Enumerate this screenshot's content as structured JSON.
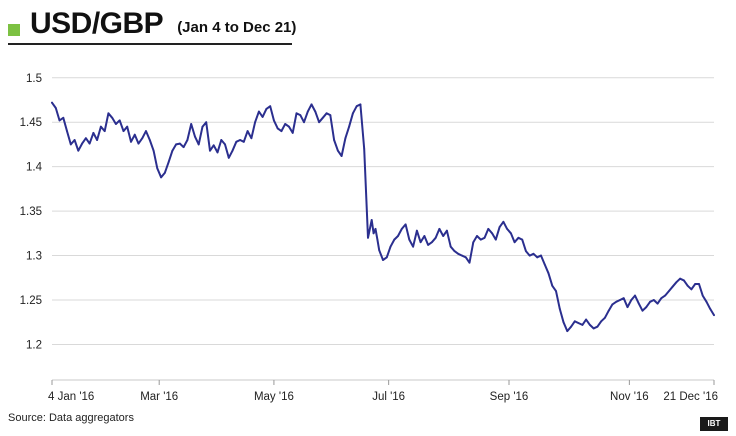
{
  "header": {
    "title": "USD/GBP",
    "subtitle": "(Jan 4 to Dec 21)",
    "accent_color": "#7cc142"
  },
  "footer": {
    "source": "Source: Data aggregators",
    "logo": "IBT"
  },
  "chart_data": {
    "type": "line",
    "title": "USD/GBP",
    "subtitle": "(Jan 4 to Dec 21)",
    "xlabel": "",
    "ylabel": "",
    "ylim": [
      1.16,
      1.52
    ],
    "yticks": [
      1.2,
      1.25,
      1.3,
      1.35,
      1.4,
      1.45,
      1.5
    ],
    "ytick_labels": [
      "1.2",
      "1.25",
      "1.3",
      "1.35",
      "1.4",
      "1.45",
      "1.5"
    ],
    "xlim": [
      0,
      352
    ],
    "xticks": [
      0,
      57,
      118,
      179,
      243,
      307,
      352
    ],
    "xtick_labels": [
      "4 Jan '16",
      "Mar '16",
      "May '16",
      "Jul '16",
      "Sep '16",
      "Nov '16",
      "21 Dec '16"
    ],
    "grid": {
      "horizontal": true,
      "vertical": false
    },
    "line_color": "#2b2f8f",
    "series": [
      {
        "x": [
          0,
          2,
          4,
          6,
          8,
          10,
          12,
          14,
          16,
          18,
          20,
          22,
          24,
          26,
          28,
          30,
          32,
          34,
          36,
          38,
          40,
          42,
          44,
          46,
          48,
          50,
          52,
          54,
          56,
          58,
          60,
          62,
          64,
          66,
          68,
          70,
          72,
          74,
          76,
          78,
          80,
          82,
          84,
          86,
          88,
          90,
          92,
          94,
          96,
          98,
          100,
          102,
          104,
          106,
          108,
          110,
          112,
          114,
          116,
          118,
          120,
          122,
          124,
          126,
          128,
          130,
          132,
          134,
          136,
          138,
          140,
          142,
          144,
          146,
          148,
          150,
          152,
          154,
          156,
          158,
          160,
          162,
          164,
          166,
          168,
          170,
          171,
          172,
          173,
          174,
          176,
          178,
          180,
          182,
          184,
          186,
          188,
          190,
          192,
          194,
          196,
          198,
          200,
          202,
          204,
          206,
          208,
          210,
          212,
          214,
          216,
          218,
          220,
          222,
          224,
          226,
          228,
          230,
          232,
          234,
          236,
          238,
          240,
          242,
          244,
          246,
          248,
          250,
          252,
          254,
          256,
          258,
          260,
          262,
          264,
          266,
          268,
          270,
          272,
          274,
          276,
          278,
          280,
          282,
          284,
          286,
          288,
          290,
          292,
          294,
          296,
          298,
          300,
          302,
          304,
          306,
          308,
          310,
          312,
          314,
          316,
          318,
          320,
          322,
          324,
          326,
          328,
          330,
          332,
          334,
          336,
          338,
          340,
          342,
          344,
          346,
          348,
          350,
          352
        ],
        "values": [
          1.472,
          1.466,
          1.452,
          1.455,
          1.44,
          1.425,
          1.43,
          1.418,
          1.426,
          1.432,
          1.426,
          1.438,
          1.43,
          1.445,
          1.44,
          1.46,
          1.455,
          1.448,
          1.452,
          1.44,
          1.445,
          1.428,
          1.436,
          1.426,
          1.432,
          1.44,
          1.43,
          1.418,
          1.398,
          1.388,
          1.393,
          1.405,
          1.418,
          1.425,
          1.426,
          1.422,
          1.43,
          1.448,
          1.434,
          1.425,
          1.445,
          1.45,
          1.418,
          1.424,
          1.416,
          1.43,
          1.425,
          1.41,
          1.418,
          1.428,
          1.43,
          1.428,
          1.44,
          1.432,
          1.45,
          1.462,
          1.456,
          1.465,
          1.468,
          1.452,
          1.443,
          1.44,
          1.448,
          1.445,
          1.438,
          1.46,
          1.458,
          1.45,
          1.462,
          1.47,
          1.462,
          1.45,
          1.455,
          1.46,
          1.458,
          1.43,
          1.418,
          1.412,
          1.432,
          1.445,
          1.46,
          1.468,
          1.47,
          1.42,
          1.32,
          1.34,
          1.325,
          1.33,
          1.318,
          1.306,
          1.295,
          1.298,
          1.31,
          1.318,
          1.322,
          1.33,
          1.335,
          1.318,
          1.31,
          1.328,
          1.315,
          1.322,
          1.312,
          1.315,
          1.32,
          1.33,
          1.322,
          1.328,
          1.31,
          1.305,
          1.302,
          1.3,
          1.298,
          1.292,
          1.315,
          1.322,
          1.318,
          1.32,
          1.33,
          1.325,
          1.318,
          1.332,
          1.338,
          1.33,
          1.325,
          1.315,
          1.32,
          1.318,
          1.305,
          1.3,
          1.302,
          1.298,
          1.3,
          1.29,
          1.28,
          1.266,
          1.26,
          1.24,
          1.225,
          1.215,
          1.22,
          1.226,
          1.224,
          1.222,
          1.228,
          1.222,
          1.218,
          1.22,
          1.226,
          1.23,
          1.238,
          1.245,
          1.248,
          1.25,
          1.252,
          1.242,
          1.25,
          1.255,
          1.246,
          1.238,
          1.242,
          1.248,
          1.25,
          1.246,
          1.252,
          1.255,
          1.26,
          1.265,
          1.27,
          1.274,
          1.272,
          1.266,
          1.262,
          1.268,
          1.268,
          1.255,
          1.248,
          1.24,
          1.233
        ]
      }
    ]
  }
}
